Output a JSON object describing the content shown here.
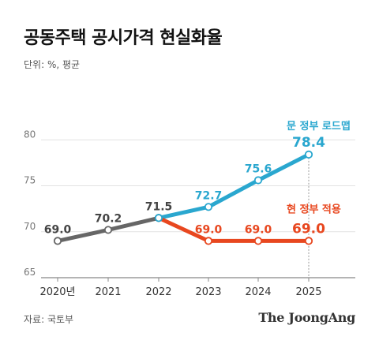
{
  "title": "공동주택 공시가격 현실화율",
  "unit_label": "단위: %, 평균",
  "source": "자료: 국토부",
  "brand": "The JoongAng",
  "colors": {
    "base": "#666666",
    "roadmap": "#2aa7cf",
    "applied": "#e8471f",
    "grid": "#e2e2e2",
    "axis": "#888888"
  },
  "chart_data": {
    "type": "line",
    "title": "공동주택 공시가격 현실화율",
    "ylabel": "단위: %, 평균",
    "ylim": [
      65,
      82
    ],
    "yticks": [
      65,
      70,
      75,
      80
    ],
    "ytick_labels": [
      "65",
      "70",
      "75",
      "80"
    ],
    "x": [
      "2020년",
      "2021",
      "2022",
      "2023",
      "2024",
      "2025"
    ],
    "grid": true,
    "series": [
      {
        "name": "",
        "key": "base",
        "x": [
          "2020년",
          "2021",
          "2022"
        ],
        "values": [
          69.0,
          70.2,
          71.5
        ],
        "labels": [
          "69.0",
          "70.2",
          "71.5"
        ]
      },
      {
        "name": "문 정부 로드맵",
        "key": "roadmap",
        "x": [
          "2022",
          "2023",
          "2024",
          "2025"
        ],
        "values": [
          71.5,
          72.7,
          75.6,
          78.4
        ],
        "labels": [
          "",
          "72.7",
          "75.6",
          "78.4"
        ]
      },
      {
        "name": "현 정부 적용",
        "key": "applied",
        "x": [
          "2022",
          "2023",
          "2024",
          "2025"
        ],
        "values": [
          71.5,
          69.0,
          69.0,
          69.0
        ],
        "labels": [
          "",
          "69.0",
          "69.0",
          "69.0"
        ]
      }
    ]
  }
}
